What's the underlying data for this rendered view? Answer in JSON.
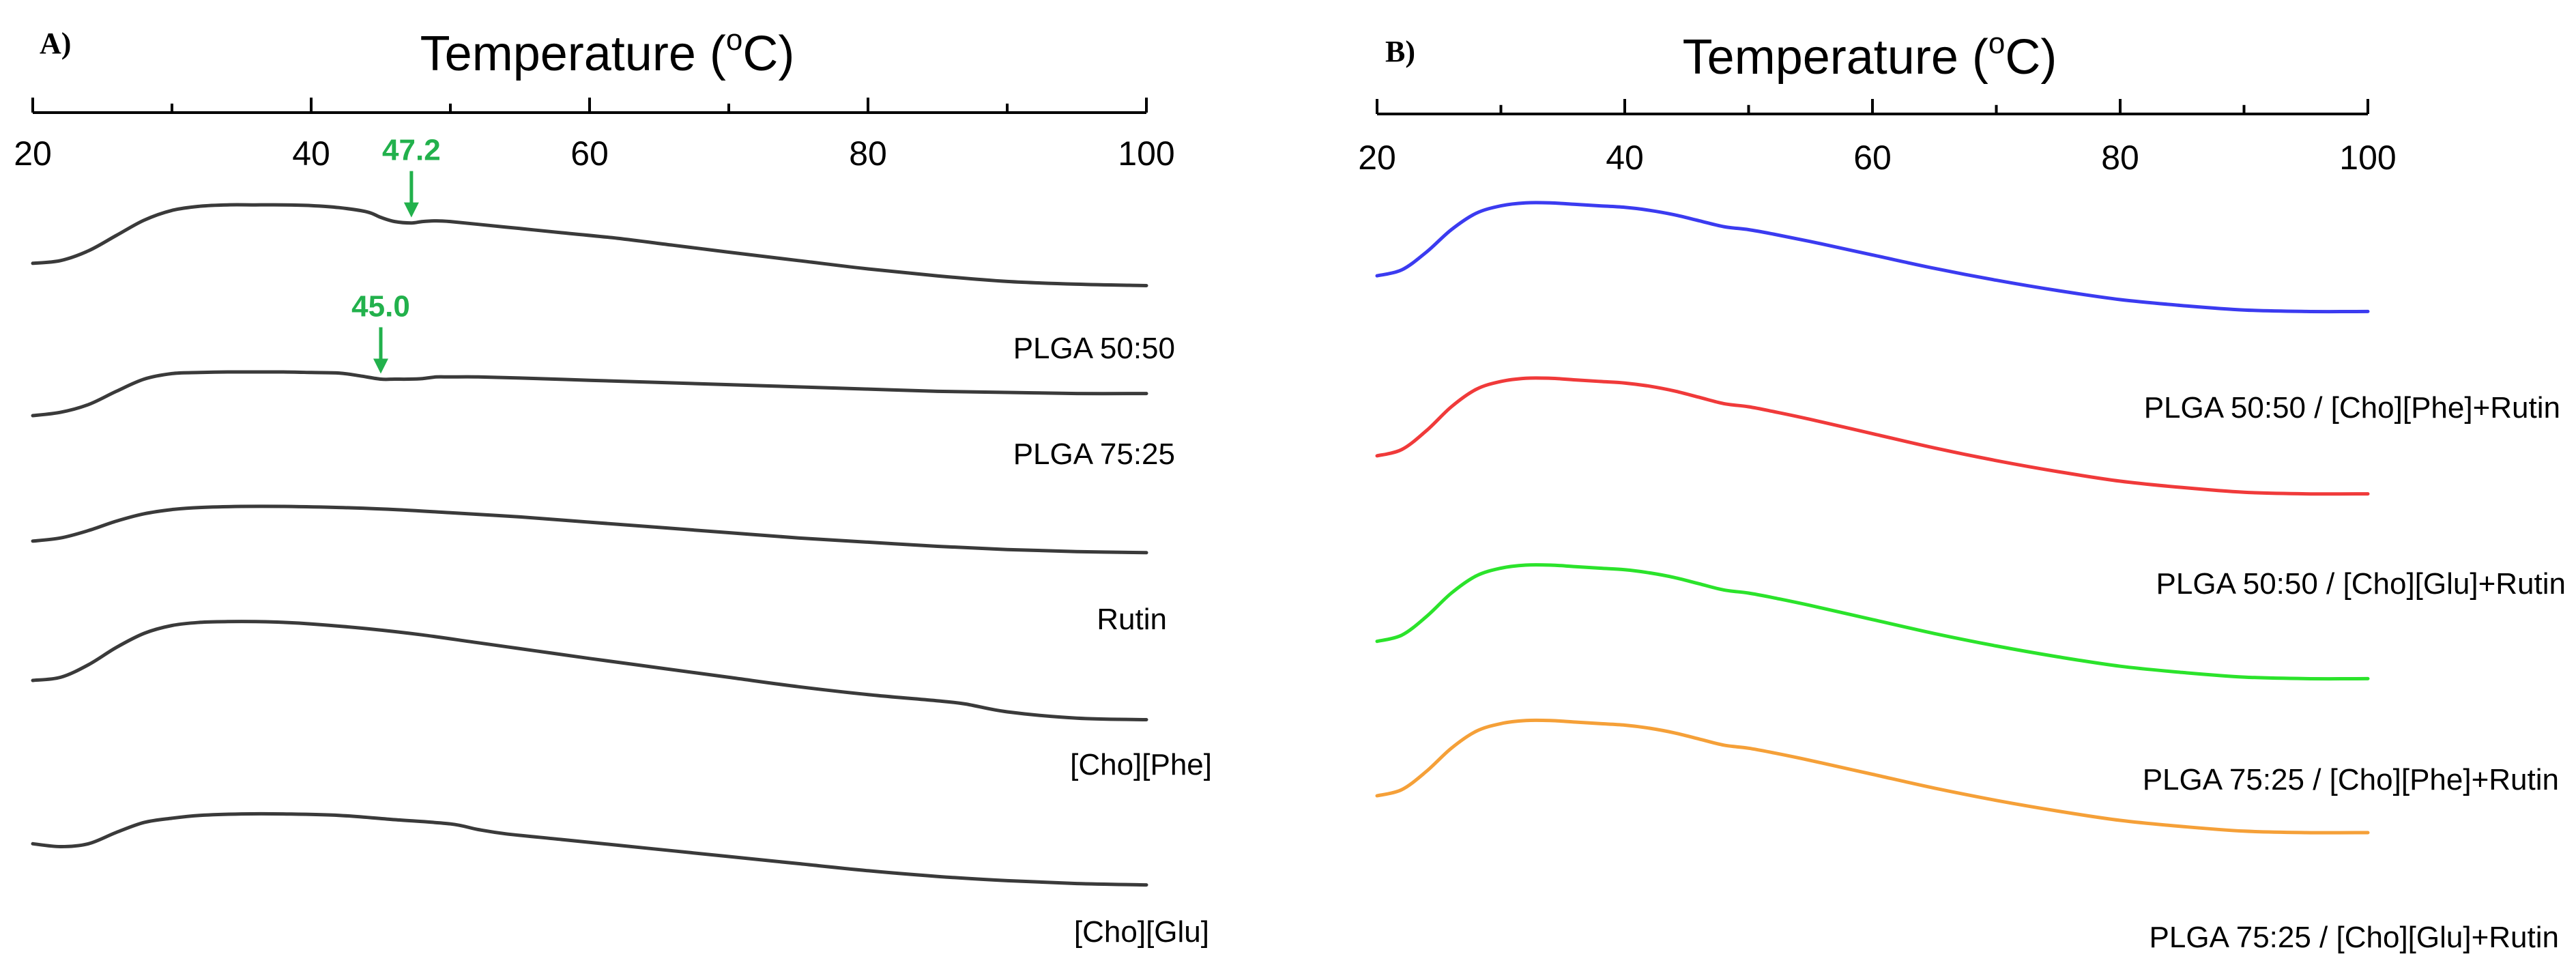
{
  "chart_data": [
    {
      "panel": "A)",
      "type": "line",
      "title": "Temperature (oC)",
      "xlabel_main": "Temperature (",
      "xlabel_sup": "o",
      "xlabel_end": "C)",
      "ylabel": "",
      "xlim": [
        20,
        100
      ],
      "xticks": [
        "20",
        "40",
        "60",
        "80",
        "100"
      ],
      "grid": false,
      "series": [
        {
          "name": "PLGA 50:50",
          "color": "#3a3a3a",
          "x": [
            20,
            22,
            24,
            26,
            28,
            30,
            32,
            34,
            36,
            38,
            40,
            42,
            44,
            45,
            46,
            47.2,
            48,
            49,
            50,
            52,
            55,
            58,
            62,
            66,
            70,
            75,
            80,
            85,
            90,
            95,
            100
          ],
          "y": [
            0.54,
            0.56,
            0.63,
            0.74,
            0.85,
            0.92,
            0.95,
            0.96,
            0.96,
            0.96,
            0.955,
            0.94,
            0.91,
            0.87,
            0.84,
            0.83,
            0.84,
            0.845,
            0.84,
            0.82,
            0.79,
            0.76,
            0.72,
            0.67,
            0.62,
            0.56,
            0.5,
            0.45,
            0.41,
            0.39,
            0.38
          ],
          "annotation": {
            "x": 47.2,
            "label": "47.2",
            "color": "#22b14c"
          }
        },
        {
          "name": "PLGA 75:25",
          "color": "#3a3a3a",
          "x": [
            20,
            22,
            24,
            26,
            28,
            30,
            32,
            34,
            36,
            38,
            40,
            42,
            43.5,
            45,
            46,
            47,
            48,
            49,
            50,
            52,
            55,
            60,
            65,
            70,
            75,
            80,
            85,
            90,
            95,
            100
          ],
          "y": [
            0.5,
            0.53,
            0.6,
            0.72,
            0.83,
            0.88,
            0.89,
            0.895,
            0.895,
            0.895,
            0.89,
            0.885,
            0.86,
            0.83,
            0.83,
            0.83,
            0.835,
            0.85,
            0.85,
            0.85,
            0.84,
            0.82,
            0.8,
            0.78,
            0.76,
            0.74,
            0.72,
            0.71,
            0.7,
            0.7
          ],
          "annotation": {
            "x": 45.0,
            "label": "45.0",
            "color": "#22b14c"
          }
        },
        {
          "name": "Rutin",
          "color": "#3a3a3a",
          "x": [
            20,
            22,
            24,
            26,
            28,
            30,
            32,
            35,
            38,
            42,
            46,
            50,
            55,
            60,
            65,
            70,
            75,
            80,
            85,
            90,
            95,
            100
          ],
          "y": [
            0.54,
            0.57,
            0.64,
            0.73,
            0.8,
            0.84,
            0.86,
            0.87,
            0.87,
            0.86,
            0.84,
            0.81,
            0.77,
            0.72,
            0.67,
            0.62,
            0.57,
            0.53,
            0.49,
            0.46,
            0.44,
            0.43
          ]
        },
        {
          "name": "[Cho][Phe]",
          "color": "#3a3a3a",
          "x": [
            20,
            22,
            24,
            26,
            28,
            30,
            32,
            34,
            36,
            38,
            40,
            44,
            48,
            52,
            56,
            60,
            65,
            70,
            75,
            80,
            85,
            87,
            90,
            95,
            100
          ],
          "y": [
            0.5,
            0.52,
            0.6,
            0.71,
            0.8,
            0.85,
            0.87,
            0.875,
            0.875,
            0.87,
            0.86,
            0.83,
            0.79,
            0.74,
            0.69,
            0.64,
            0.58,
            0.52,
            0.46,
            0.41,
            0.37,
            0.35,
            0.3,
            0.26,
            0.25
          ]
        },
        {
          "name": "[Cho][Glu]",
          "color": "#3a3a3a",
          "x": [
            20,
            22,
            24,
            26,
            28,
            30,
            32,
            35,
            38,
            42,
            46,
            50,
            52,
            54,
            58,
            62,
            66,
            70,
            75,
            80,
            85,
            90,
            95,
            100
          ],
          "y": [
            0.46,
            0.44,
            0.46,
            0.54,
            0.61,
            0.64,
            0.66,
            0.67,
            0.67,
            0.66,
            0.63,
            0.6,
            0.56,
            0.53,
            0.49,
            0.45,
            0.41,
            0.37,
            0.32,
            0.27,
            0.23,
            0.2,
            0.18,
            0.17
          ]
        }
      ]
    },
    {
      "panel": "B)",
      "type": "line",
      "title": "Temperature (oC)",
      "xlabel_main": "Temperature (",
      "xlabel_sup": "o",
      "xlabel_end": "C)",
      "ylabel": "",
      "xlim": [
        20,
        100
      ],
      "xticks": [
        "20",
        "40",
        "60",
        "80",
        "100"
      ],
      "grid": false,
      "series": [
        {
          "name": "PLGA 50:50 / [Cho][Phe]+Rutin",
          "color": "#3b3bf0",
          "x": [
            20,
            22,
            24,
            26,
            28,
            30,
            32,
            34,
            36,
            38,
            40,
            42,
            44,
            46,
            48,
            50,
            52,
            55,
            60,
            65,
            70,
            75,
            80,
            85,
            90,
            95,
            100
          ],
          "y": [
            0.44,
            0.48,
            0.6,
            0.75,
            0.86,
            0.91,
            0.93,
            0.93,
            0.92,
            0.91,
            0.9,
            0.88,
            0.85,
            0.81,
            0.77,
            0.75,
            0.72,
            0.67,
            0.58,
            0.49,
            0.41,
            0.34,
            0.28,
            0.24,
            0.21,
            0.2,
            0.2
          ]
        },
        {
          "name": "PLGA 50:50 / [Cho][Glu]+Rutin",
          "color": "#f03a3a",
          "x": [
            20,
            22,
            24,
            26,
            28,
            30,
            32,
            34,
            36,
            38,
            40,
            42,
            44,
            46,
            48,
            50,
            52,
            55,
            60,
            65,
            70,
            75,
            80,
            85,
            90,
            95,
            100
          ],
          "y": [
            0.44,
            0.48,
            0.6,
            0.75,
            0.86,
            0.91,
            0.93,
            0.93,
            0.92,
            0.91,
            0.9,
            0.88,
            0.85,
            0.81,
            0.77,
            0.75,
            0.72,
            0.67,
            0.58,
            0.49,
            0.41,
            0.34,
            0.28,
            0.24,
            0.21,
            0.2,
            0.2
          ]
        },
        {
          "name": "PLGA 75:25 / [Cho][Phe]+Rutin",
          "color": "#2be32b",
          "x": [
            20,
            22,
            24,
            26,
            28,
            30,
            32,
            34,
            36,
            38,
            40,
            42,
            44,
            46,
            48,
            50,
            52,
            55,
            60,
            65,
            70,
            75,
            80,
            85,
            90,
            95,
            100
          ],
          "y": [
            0.44,
            0.48,
            0.6,
            0.75,
            0.86,
            0.91,
            0.93,
            0.93,
            0.92,
            0.91,
            0.9,
            0.88,
            0.85,
            0.81,
            0.77,
            0.75,
            0.72,
            0.67,
            0.58,
            0.49,
            0.41,
            0.34,
            0.28,
            0.24,
            0.21,
            0.2,
            0.2
          ]
        },
        {
          "name": "PLGA 75:25 / [Cho][Glu]+Rutin",
          "color": "#f5a038",
          "x": [
            20,
            22,
            24,
            26,
            28,
            30,
            32,
            34,
            36,
            38,
            40,
            42,
            44,
            46,
            48,
            50,
            52,
            55,
            60,
            65,
            70,
            75,
            80,
            85,
            90,
            95,
            100
          ],
          "y": [
            0.44,
            0.48,
            0.6,
            0.75,
            0.86,
            0.91,
            0.93,
            0.93,
            0.92,
            0.91,
            0.9,
            0.88,
            0.85,
            0.81,
            0.77,
            0.75,
            0.72,
            0.67,
            0.58,
            0.49,
            0.41,
            0.34,
            0.28,
            0.24,
            0.21,
            0.2,
            0.2
          ]
        }
      ]
    }
  ]
}
